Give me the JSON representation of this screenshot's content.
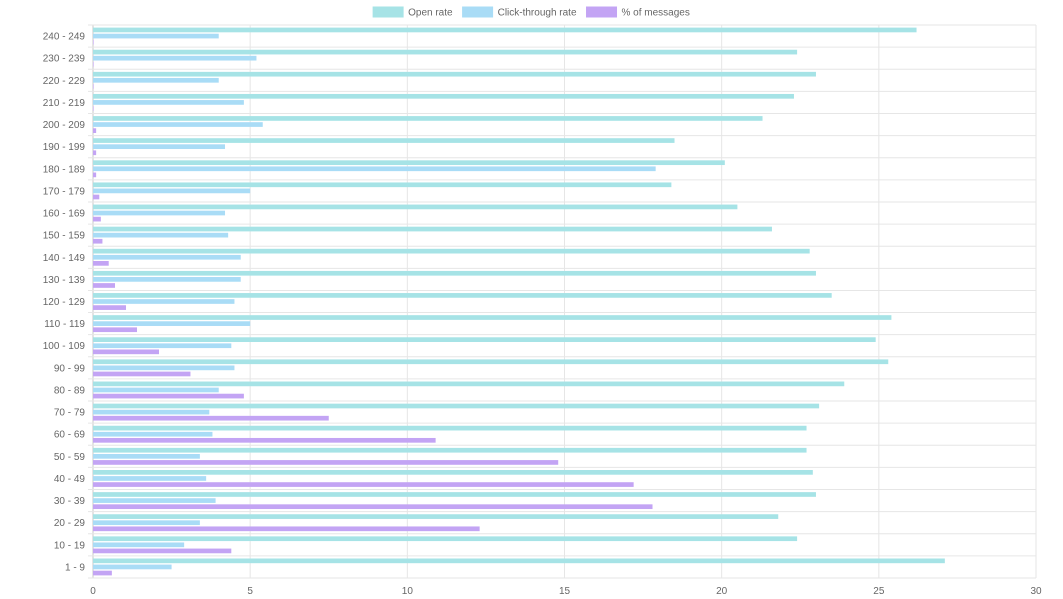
{
  "chart_data": {
    "type": "bar",
    "orientation": "horizontal",
    "title": "",
    "xlabel": "",
    "ylabel": "",
    "xlim": [
      0,
      30
    ],
    "x_ticks": [
      0,
      5,
      10,
      15,
      20,
      25,
      30
    ],
    "grid": true,
    "legend_position": "top-center",
    "categories": [
      "240 - 249",
      "230 - 239",
      "220 - 229",
      "210 - 219",
      "200 - 209",
      "190 - 199",
      "180 - 189",
      "170 - 179",
      "160 - 169",
      "150 - 159",
      "140 - 149",
      "130 - 139",
      "120 - 129",
      "110 - 119",
      "100 - 109",
      "90 - 99",
      "80 - 89",
      "70 - 79",
      "60 - 69",
      "50 - 59",
      "40 - 49",
      "30 - 39",
      "20 - 29",
      "10 - 19",
      "1 - 9"
    ],
    "series": [
      {
        "name": "Open rate",
        "color": "#a6e3e6",
        "values": [
          26.2,
          22.4,
          23.0,
          22.3,
          21.3,
          18.5,
          20.1,
          18.4,
          20.5,
          21.6,
          22.8,
          23.0,
          23.5,
          25.4,
          24.9,
          25.3,
          23.9,
          23.1,
          22.7,
          22.7,
          22.9,
          23.0,
          21.8,
          22.4,
          27.1
        ]
      },
      {
        "name": "Click-through rate",
        "color": "#a9dcf6",
        "values": [
          4.0,
          5.2,
          4.0,
          4.8,
          5.4,
          4.2,
          17.9,
          5.0,
          4.2,
          4.3,
          4.7,
          4.7,
          4.5,
          5.0,
          4.4,
          4.5,
          4.0,
          3.7,
          3.8,
          3.4,
          3.6,
          3.9,
          3.4,
          2.9,
          2.5
        ]
      },
      {
        "name": "% of messages",
        "color": "#c3a4f4",
        "values": [
          0.0,
          0.0,
          0.0,
          0.0,
          0.1,
          0.1,
          0.1,
          0.2,
          0.25,
          0.3,
          0.5,
          0.7,
          1.05,
          1.4,
          2.1,
          3.1,
          4.8,
          7.5,
          10.9,
          14.8,
          17.2,
          17.8,
          12.3,
          4.4,
          0.6
        ]
      }
    ]
  }
}
